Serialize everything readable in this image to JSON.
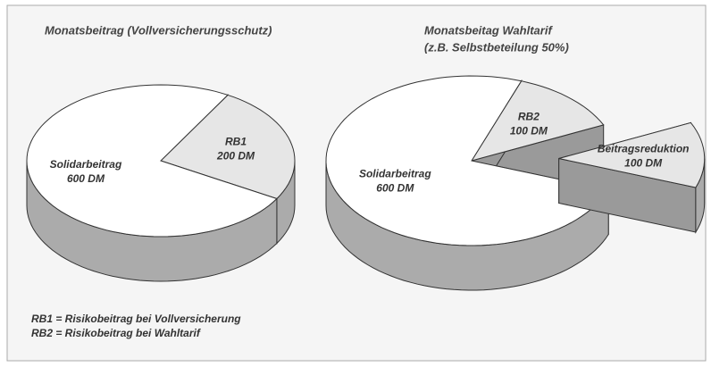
{
  "footnotes": [
    "RB1 = Risikobeitrag bei Vollversicherung",
    "RB2 = Risikobeitrag bei Wahltarif"
  ],
  "chart_data": [
    {
      "type": "pie",
      "title": "Monatsbeitrag (Vollversicherungsschutz)",
      "labels": [
        "RB1",
        "Solidarbeitrag"
      ],
      "values": [
        200,
        600
      ],
      "value_labels": [
        "200 DM",
        "600 DM"
      ],
      "colors": [
        "#e6e6e6",
        "#ffffff"
      ],
      "explode": [
        0,
        0
      ],
      "startangle": -60
    },
    {
      "type": "pie",
      "title": "Monatsbeitag Wahltarif",
      "subtitle": "(z.B. Selbstbeteilung 50%)",
      "labels": [
        "RB2",
        "Beitragsreduktion",
        "Solidarbeitrag"
      ],
      "values": [
        100,
        100,
        600
      ],
      "value_labels": [
        "100 DM",
        "100 DM",
        "600 DM"
      ],
      "colors": [
        "#e6e6e6",
        "#e6e6e6",
        "#ffffff"
      ],
      "explode": [
        0,
        1,
        0
      ],
      "startangle": -70
    }
  ]
}
